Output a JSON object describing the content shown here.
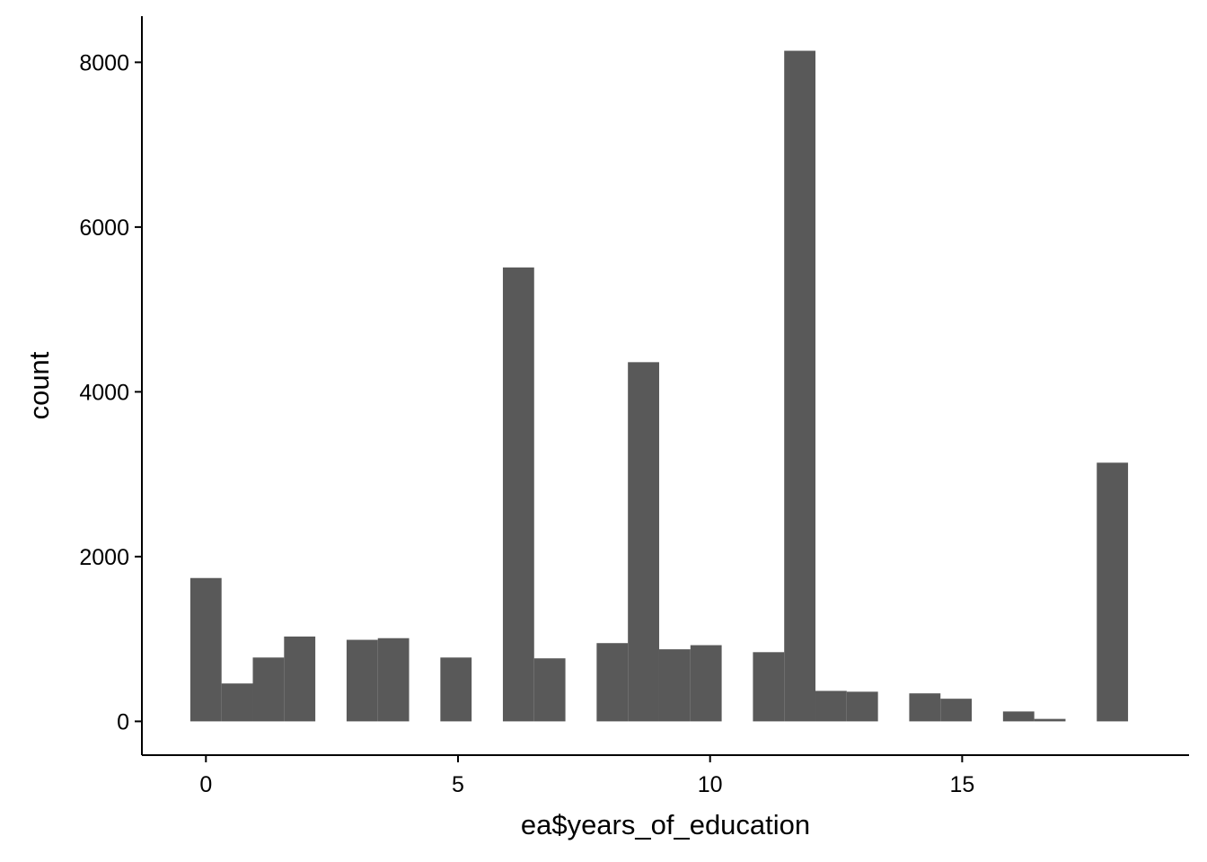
{
  "chart_data": {
    "type": "bar",
    "title": "",
    "xlabel": "ea$years_of_education",
    "ylabel": "count",
    "xlim": [
      -1.27,
      19.5
    ],
    "ylim": [
      -410,
      8560
    ],
    "x_ticks": [
      0,
      5,
      10,
      15
    ],
    "y_ticks": [
      0,
      2000,
      4000,
      6000,
      8000
    ],
    "grid": false,
    "bar_color": "#595959",
    "bin_width": 0.62,
    "bins": [
      {
        "x": 0.0,
        "count": 1740
      },
      {
        "x": 0.62,
        "count": 460
      },
      {
        "x": 1.24,
        "count": 775
      },
      {
        "x": 1.86,
        "count": 1030
      },
      {
        "x": 3.1,
        "count": 990
      },
      {
        "x": 3.72,
        "count": 1010
      },
      {
        "x": 4.96,
        "count": 775
      },
      {
        "x": 6.2,
        "count": 5510
      },
      {
        "x": 6.82,
        "count": 765
      },
      {
        "x": 8.06,
        "count": 950
      },
      {
        "x": 8.68,
        "count": 4360
      },
      {
        "x": 9.3,
        "count": 875
      },
      {
        "x": 9.92,
        "count": 925
      },
      {
        "x": 11.16,
        "count": 840
      },
      {
        "x": 11.78,
        "count": 8140
      },
      {
        "x": 12.4,
        "count": 370
      },
      {
        "x": 13.02,
        "count": 360
      },
      {
        "x": 14.26,
        "count": 340
      },
      {
        "x": 14.88,
        "count": 275
      },
      {
        "x": 16.12,
        "count": 120
      },
      {
        "x": 16.74,
        "count": 30
      },
      {
        "x": 17.98,
        "count": 3140
      }
    ]
  }
}
